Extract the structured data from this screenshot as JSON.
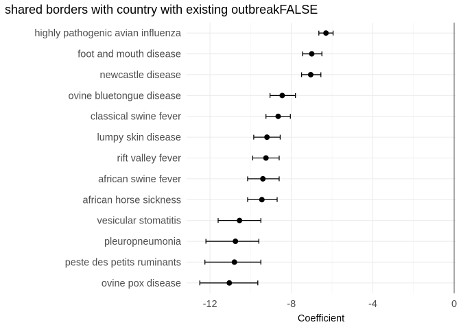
{
  "chart_data": {
    "type": "scatter",
    "title": "shared borders with country with existing outbreakFALSE",
    "xlabel": "Coefficient",
    "ylabel": "",
    "xlim": [
      -13.15,
      0.1
    ],
    "x_ticks": [
      -12,
      -8,
      -4,
      0
    ],
    "x_tick_labels": [
      "-12",
      "-8",
      "-4",
      "0"
    ],
    "reference_line": 0,
    "grid": true,
    "categories": [
      "highly pathogenic avian influenza",
      "foot and mouth disease",
      "newcastle disease",
      "ovine bluetongue disease",
      "classical swine fever",
      "lumpy skin disease",
      "rift valley fever",
      "african swine fever",
      "african horse sickness",
      "vesicular stomatitis",
      "pleuropneumonia",
      "peste des petits ruminants",
      "ovine pox disease"
    ],
    "estimates": [
      -6.3,
      -7.0,
      -7.05,
      -8.45,
      -8.65,
      -9.2,
      -9.25,
      -9.4,
      -9.45,
      -10.55,
      -10.75,
      -10.8,
      -11.05
    ],
    "lower": [
      -6.65,
      -7.45,
      -7.5,
      -9.05,
      -9.25,
      -9.85,
      -9.9,
      -10.15,
      -10.15,
      -11.6,
      -12.2,
      -12.25,
      -12.5
    ],
    "upper": [
      -5.95,
      -6.5,
      -6.55,
      -7.8,
      -8.05,
      -8.55,
      -8.6,
      -8.6,
      -8.7,
      -9.5,
      -9.6,
      -9.5,
      -9.65
    ],
    "colors": {
      "point": "#000000",
      "errorbar": "#000000",
      "reference_line": "#7f7f7f",
      "grid": "#ebebeb"
    }
  }
}
